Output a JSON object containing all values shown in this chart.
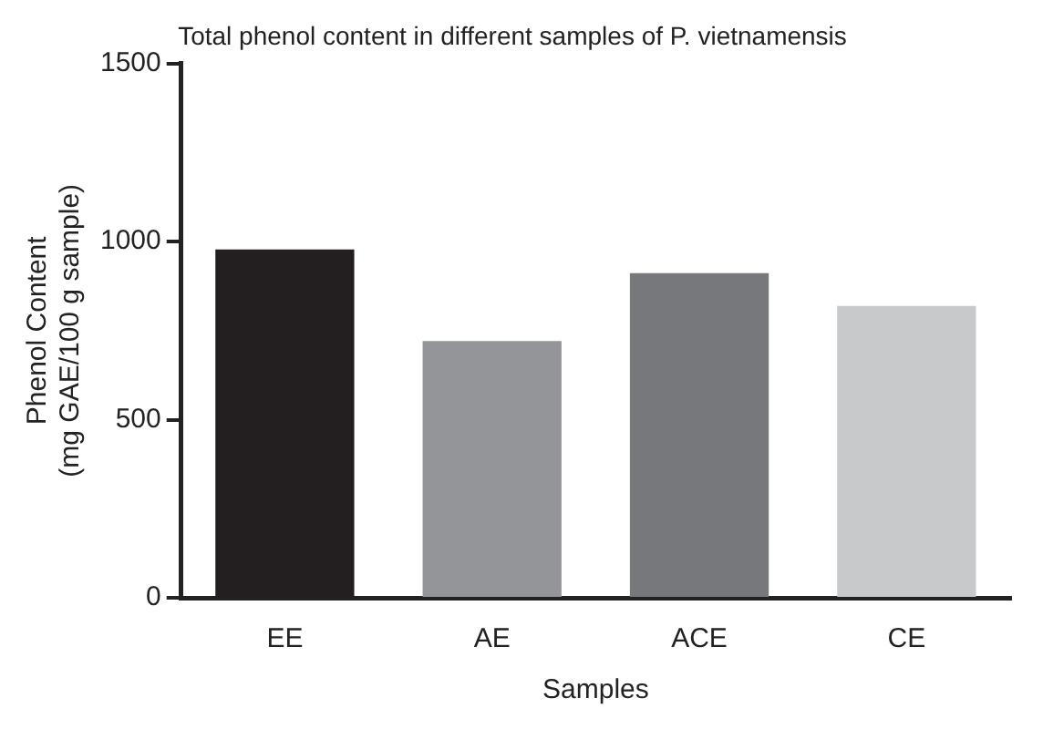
{
  "chart_data": {
    "type": "bar",
    "title": "Total phenol content in different samples of P. vietnamensis",
    "xlabel": "Samples",
    "ylabel": "Phenol Content\n(mg GAE/100 g sample)",
    "categories": [
      "EE",
      "AE",
      "ACE",
      "CE"
    ],
    "values": [
      978,
      721,
      911,
      819
    ],
    "colors": [
      "#231f20",
      "#939598",
      "#77787b",
      "#c8c9cb"
    ],
    "ylim": [
      0,
      1500
    ],
    "yticks": [
      0,
      500,
      1000,
      1500
    ],
    "grid": false,
    "legend": false
  }
}
